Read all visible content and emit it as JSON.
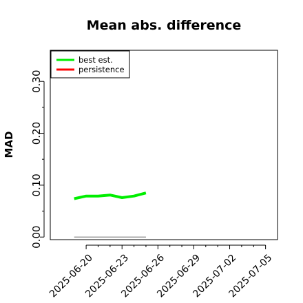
{
  "chart_data": {
    "type": "line",
    "title": "Mean abs. difference",
    "xlabel": "",
    "ylabel": "MAD",
    "x_ticks": [
      "2025-06-20",
      "2025-06-23",
      "2025-06-26",
      "2025-06-29",
      "2025-07-02",
      "2025-07-05"
    ],
    "y_ticks": [
      "0.00",
      "0.10",
      "0.20",
      "0.30"
    ],
    "y_tick_values": [
      0.0,
      0.1,
      0.2,
      0.3
    ],
    "ylim": [
      -0.005,
      0.36
    ],
    "xlim": [
      "2025-06-17",
      "2025-07-06"
    ],
    "legend_position": "top-left",
    "grid": false,
    "series": [
      {
        "name": "best est.",
        "color": "#00ee00",
        "x": [
          "2025-06-19",
          "2025-06-20",
          "2025-06-21",
          "2025-06-22",
          "2025-06-23",
          "2025-06-24",
          "2025-06-25"
        ],
        "values": [
          0.074,
          0.079,
          0.079,
          0.081,
          0.076,
          0.079,
          0.085
        ]
      },
      {
        "name": "persistence",
        "color": "#ff0000",
        "x": [],
        "values": []
      }
    ],
    "reference_line": {
      "color": "#888888",
      "x": [
        "2025-06-19",
        "2025-06-25"
      ],
      "values": [
        0.0,
        0.0
      ]
    }
  }
}
